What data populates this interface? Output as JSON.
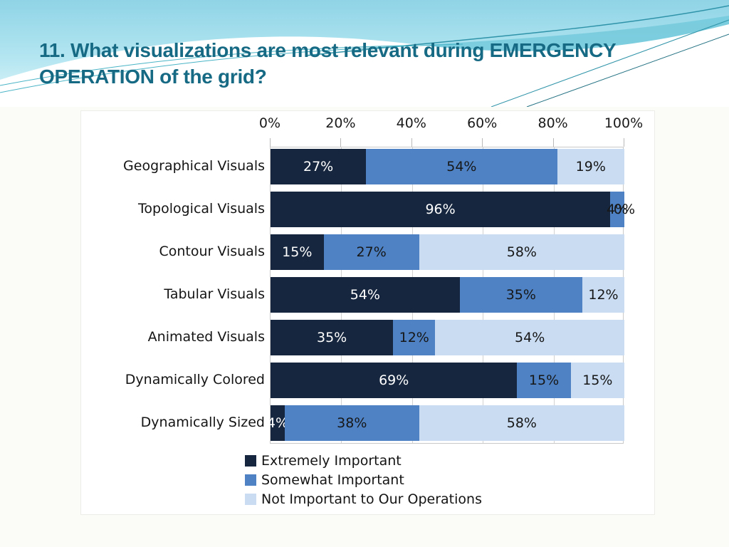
{
  "slide": {
    "title_line1": "11. What visualizations are most relevant during EMERGENCY",
    "title_line2": "OPERATION of the grid?",
    "title_color": "#176a84"
  },
  "chart_data": {
    "type": "bar",
    "orientation": "horizontal",
    "stacked": true,
    "grid": true,
    "legend_position": "bottom-left",
    "xlim": [
      0,
      100
    ],
    "x_axis_ticks": [
      "0%",
      "20%",
      "40%",
      "60%",
      "80%",
      "100%"
    ],
    "data_label_suffix": "%",
    "categories": [
      "Geographical Visuals",
      "Topological Visuals",
      "Contour Visuals",
      "Tabular Visuals",
      "Animated Visuals",
      "Dynamically Colored",
      "Dynamically Sized"
    ],
    "series": [
      {
        "name": "Extremely Important",
        "color": "#16263e",
        "label_color": "light",
        "values": [
          27,
          96,
          15,
          54,
          35,
          69,
          4
        ]
      },
      {
        "name": "Somewhat Important",
        "color": "#4e82c4",
        "label_color": "dark",
        "values": [
          54,
          4,
          27,
          35,
          12,
          15,
          38
        ]
      },
      {
        "name": "Not Important to Our Operations",
        "color": "#c9dcf2",
        "label_color": "dark",
        "values": [
          19,
          0,
          58,
          12,
          54,
          15,
          58
        ]
      }
    ]
  }
}
